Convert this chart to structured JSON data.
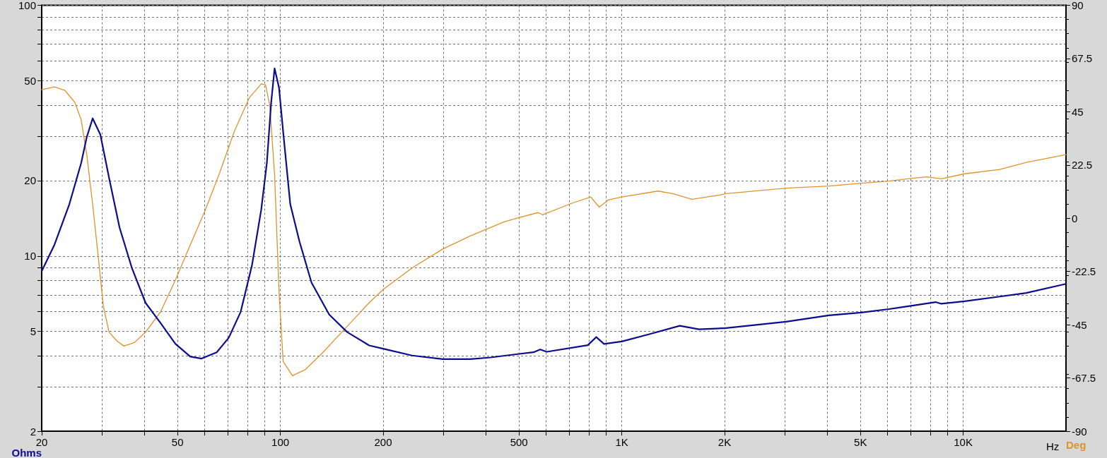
{
  "chart_data": {
    "type": "line",
    "xlabel": "Hz",
    "ylabel": "Ohms",
    "y2label": "Deg",
    "log": "xy",
    "grid": true,
    "xlim": [
      20,
      20000
    ],
    "xticks": [
      20,
      {
        "value": 30,
        "label": null
      },
      {
        "value": 40,
        "label": null
      },
      50,
      {
        "value": 60,
        "label": null
      },
      {
        "value": 70,
        "label": null
      },
      {
        "value": 80,
        "label": null
      },
      {
        "value": 90,
        "label": null
      },
      100,
      200,
      {
        "value": 300,
        "label": null
      },
      {
        "value": 400,
        "label": null
      },
      500,
      {
        "value": 600,
        "label": null
      },
      {
        "value": 700,
        "label": null
      },
      {
        "value": 800,
        "label": null
      },
      {
        "value": 900,
        "label": null
      },
      {
        "value": 1000,
        "label": "1K"
      },
      {
        "value": 2000,
        "label": "2K"
      },
      {
        "value": 3000,
        "label": null
      },
      {
        "value": 4000,
        "label": null
      },
      {
        "value": 5000,
        "label": "5K"
      },
      {
        "value": 6000,
        "label": null
      },
      {
        "value": 7000,
        "label": null
      },
      {
        "value": 8000,
        "label": null
      },
      {
        "value": 9000,
        "label": null
      },
      {
        "value": 10000,
        "label": "10K"
      }
    ],
    "ylim": [
      2,
      100
    ],
    "yticks": [
      2,
      {
        "value": 3,
        "label": null
      },
      {
        "value": 4,
        "label": null
      },
      5,
      {
        "value": 6,
        "label": null
      },
      {
        "value": 7,
        "label": null
      },
      {
        "value": 8,
        "label": null
      },
      {
        "value": 9,
        "label": null
      },
      10,
      20,
      {
        "value": 30,
        "label": null
      },
      {
        "value": 40,
        "label": null
      },
      50,
      {
        "value": 60,
        "label": null
      },
      {
        "value": 70,
        "label": null
      },
      {
        "value": 80,
        "label": null
      },
      {
        "value": 90,
        "label": null
      },
      100
    ],
    "y2lim": [
      -90,
      90
    ],
    "y2ticks": [
      -90,
      -67.5,
      -45,
      -22.5,
      0,
      22.5,
      45,
      67.5,
      90
    ],
    "series": [
      {
        "color": "#0c0c8c",
        "x": [
          20,
          21.8,
          24.1,
          26.1,
          27.1,
          28.2,
          29.7,
          31.5,
          33.8,
          36.7,
          40.3,
          44.6,
          49.3,
          54.5,
          58.8,
          65.1,
          70.6,
          76.5,
          82.6,
          87.9,
          91.3,
          94,
          96.2,
          99.1,
          101.9,
          106.9,
          113.8,
          123.4,
          139,
          157,
          182,
          200,
          243,
          299,
          360,
          413,
          500,
          551,
          577,
          603,
          795,
          842,
          887,
          1000,
          1205,
          1479,
          1683,
          2020,
          3030,
          4040,
          5030,
          6060,
          7090,
          8300,
          8630,
          10100,
          12800,
          15300,
          20000
        ],
        "values": [
          8.7,
          11.1,
          16.1,
          23.5,
          29.8,
          35.4,
          30.5,
          20.5,
          13.0,
          9.0,
          6.5,
          5.4,
          4.46,
          3.97,
          3.9,
          4.13,
          4.72,
          5.98,
          9.2,
          15.3,
          23.5,
          41,
          56,
          46.9,
          31.3,
          16.1,
          11.4,
          7.83,
          5.84,
          4.97,
          4.4,
          4.27,
          4.01,
          3.88,
          3.88,
          3.94,
          4.07,
          4.13,
          4.24,
          4.15,
          4.41,
          4.75,
          4.46,
          4.56,
          4.88,
          5.27,
          5.1,
          5.16,
          5.47,
          5.8,
          5.95,
          6.14,
          6.34,
          6.55,
          6.45,
          6.6,
          6.89,
          7.12,
          7.74
        ]
      },
      {
        "color": "#e0922a",
        "axis": "y2",
        "x": [
          20,
          21.8,
          23.4,
          25,
          26.1,
          27.1,
          28.2,
          29.4,
          30.3,
          31.5,
          33.2,
          34.8,
          37.4,
          40.3,
          44.6,
          49.3,
          54.5,
          60.3,
          66.5,
          73.3,
          81,
          87.9,
          90.5,
          93.1,
          96.2,
          99.1,
          101.9,
          108.5,
          118.2,
          133.2,
          150,
          182,
          200,
          243,
          299,
          360,
          452,
          500,
          569,
          586,
          719,
          811,
          859,
          913,
          1000,
          1276,
          1410,
          1604,
          1933,
          2020,
          3030,
          4040,
          5030,
          6060,
          7090,
          7830,
          8630,
          10100,
          12800,
          15300,
          20000
        ],
        "values": [
          54.3,
          55.5,
          54,
          49,
          41.6,
          26.9,
          5.9,
          -18.6,
          -37,
          -48.1,
          -51.8,
          -54,
          -52.5,
          -48.1,
          -39.5,
          -26,
          -11.2,
          3.5,
          19.5,
          36.7,
          50.8,
          56.8,
          56.4,
          47.8,
          18.3,
          -31,
          -60.5,
          -66.5,
          -64,
          -56.7,
          -48.7,
          -35.7,
          -30.1,
          -21,
          -13,
          -7.5,
          -1.5,
          0.3,
          2.4,
          1.5,
          6.5,
          9,
          4.7,
          7.7,
          9,
          11.5,
          10.4,
          8,
          9.8,
          10.4,
          12.7,
          13.6,
          14.8,
          15.7,
          16.9,
          17.5,
          16.7,
          18.8,
          20.6,
          23.6,
          26.9
        ]
      }
    ]
  }
}
